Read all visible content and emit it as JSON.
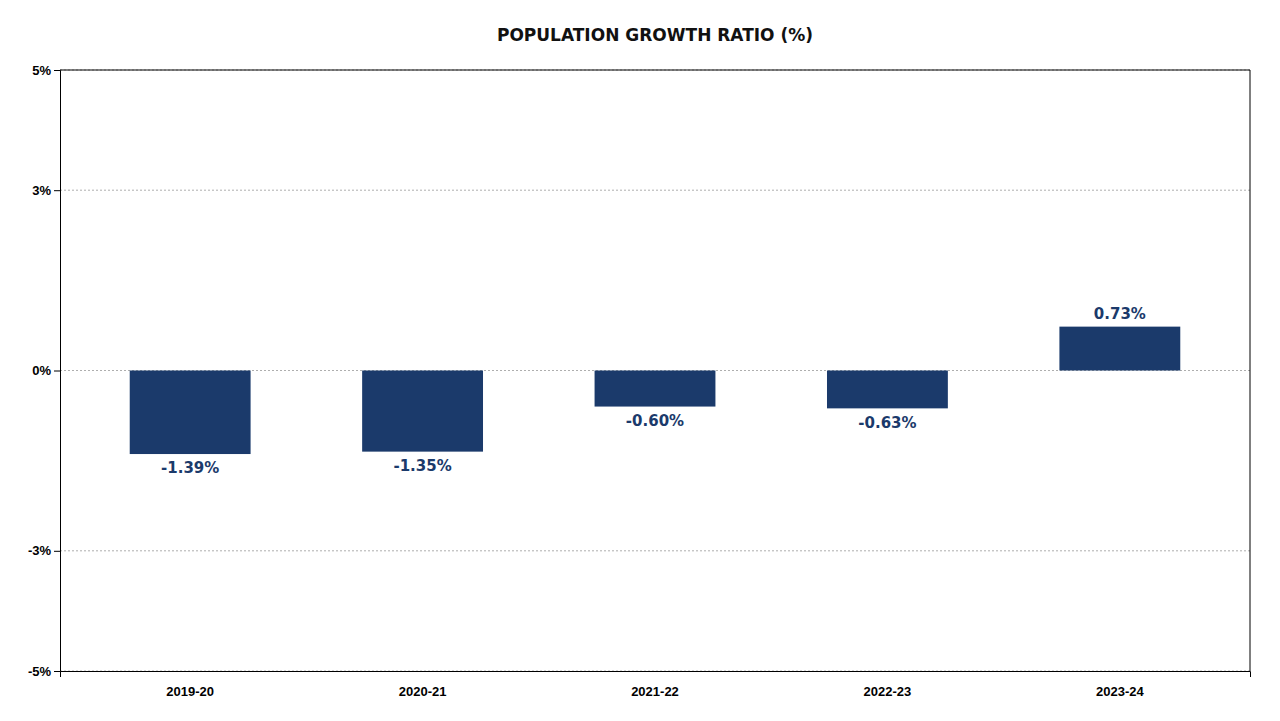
{
  "chart_data": {
    "type": "bar",
    "title": "POPULATION GROWTH RATIO (%)",
    "categories": [
      "2019-20",
      "2020-21",
      "2021-22",
      "2022-23",
      "2023-24"
    ],
    "values": [
      -1.39,
      -1.35,
      -0.6,
      -0.63,
      0.73
    ],
    "value_labels": [
      "-1.39%",
      "-1.35%",
      "-0.60%",
      "-0.63%",
      "0.73%"
    ],
    "color": "#1b3a6b",
    "ylim": [
      -5,
      5
    ],
    "yticks": [
      {
        "value": -5,
        "label": "-5%"
      },
      {
        "value": -3,
        "label": "-3%"
      },
      {
        "value": 0,
        "label": "0%"
      },
      {
        "value": 3,
        "label": "3%"
      },
      {
        "value": 5,
        "label": "5%"
      }
    ],
    "grid": true,
    "data_labels": true
  }
}
